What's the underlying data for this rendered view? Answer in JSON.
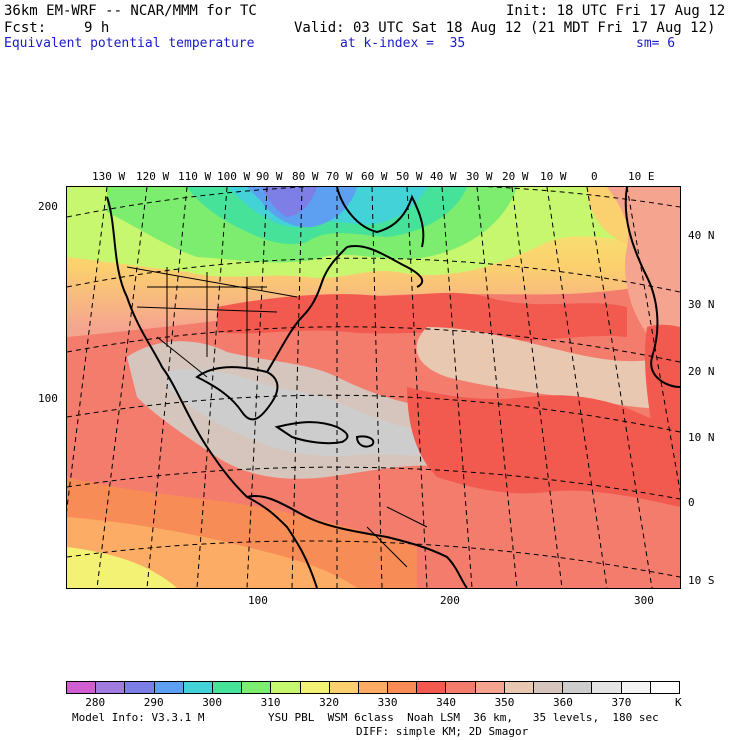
{
  "header": {
    "model": "36km EM-WRF -- NCAR/MMM for TC",
    "init": "Init: 18 UTC Fri 17 Aug 12",
    "fcst_label": "Fcst:",
    "fcst_hours": "9 h",
    "valid": "Valid: 03 UTC Sat 18 Aug 12 (21 MDT Fri 17 Aug 12)",
    "field": "Equivalent potential temperature",
    "level": "at k-index =  35",
    "smoothing": "sm= 6"
  },
  "map": {
    "top_lon_labels": [
      "130 W",
      "120 W",
      "110 W",
      "100 W",
      "90 W",
      "80 W",
      "70 W",
      "60 W",
      "50 W",
      "40 W",
      "30 W",
      "20 W",
      "10 W",
      "0",
      "10 E"
    ],
    "right_lat_labels": [
      "40 N",
      "30 N",
      "20 N",
      "10 N",
      "0",
      "10 S"
    ],
    "left_grid_labels": [
      "200",
      "100"
    ],
    "bottom_grid_labels": [
      "100",
      "200",
      "300"
    ]
  },
  "legend": {
    "labels": [
      "280",
      "290",
      "300",
      "310",
      "320",
      "330",
      "340",
      "350",
      "360",
      "370"
    ],
    "unit": "K",
    "colors": [
      "#d05ed0",
      "#a27be0",
      "#7d7ee6",
      "#5d9ff0",
      "#43d2d8",
      "#46e29a",
      "#7ced6e",
      "#c7f76e",
      "#f3f274",
      "#fbd06e",
      "#fcac64",
      "#f88c56",
      "#f35a4f",
      "#f37c6d",
      "#f5a58f",
      "#e9c8b2",
      "#d6c5bc",
      "#cdcdcd",
      "#e4e4e4",
      "#f4f4f4",
      "#ffffff"
    ]
  },
  "footer": {
    "model_info": "Model Info: V3.3.1 M",
    "physics": "YSU PBL  WSM 6class  Noah LSM  36 km,   35 levels,  180 sec",
    "diffusion": "DIFF: simple KM; 2D Smagor"
  }
}
